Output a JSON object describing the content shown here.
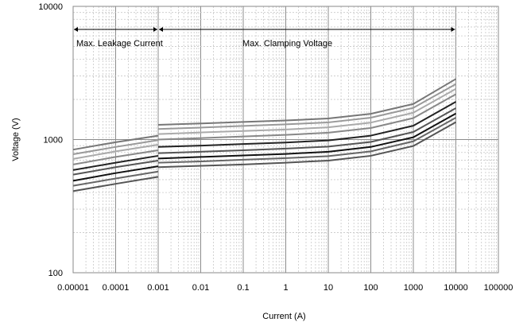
{
  "chart_data": {
    "type": "line",
    "xscale": "log",
    "yscale": "log",
    "xlim": [
      1e-05,
      100000
    ],
    "ylim": [
      100,
      10000
    ],
    "xlabel": "Current (A)",
    "ylabel": "Voltage (V)",
    "x_ticks": [
      "0.00001",
      "0.0001",
      "0.001",
      "0.01",
      "0.1",
      "1",
      "10",
      "100",
      "1000",
      "10000",
      "100000"
    ],
    "y_ticks": [
      "100",
      "1000",
      "10000"
    ],
    "grid": true,
    "annotations": [
      {
        "text": "Max. Leakage Current",
        "x_from": 1e-05,
        "x_to": 0.001
      },
      {
        "text": "Max. Clamping Voltage",
        "x_from": 0.001,
        "x_to": 10000
      }
    ],
    "series": [
      {
        "color": "#777777",
        "leakage": {
          "x": [
            1e-05,
            0.0001,
            0.001
          ],
          "y": [
            840,
            955,
            1070
          ]
        },
        "clamping": {
          "x": [
            0.001,
            0.01,
            0.1,
            1,
            10,
            100,
            1000,
            10000
          ],
          "y": [
            1290,
            1320,
            1355,
            1390,
            1440,
            1560,
            1850,
            2850
          ]
        }
      },
      {
        "color": "#999999",
        "leakage": {
          "x": [
            1e-05,
            0.0001,
            0.001
          ],
          "y": [
            775,
            880,
            990
          ]
        },
        "clamping": {
          "x": [
            0.001,
            0.01,
            0.1,
            1,
            10,
            100,
            1000,
            10000
          ],
          "y": [
            1200,
            1230,
            1265,
            1300,
            1345,
            1460,
            1730,
            2610
          ]
        }
      },
      {
        "color": "#aaaaaa",
        "leakage": {
          "x": [
            1e-05,
            0.0001,
            0.001
          ],
          "y": [
            715,
            815,
            915
          ]
        },
        "clamping": {
          "x": [
            0.001,
            0.01,
            0.1,
            1,
            10,
            100,
            1000,
            10000
          ],
          "y": [
            1100,
            1130,
            1160,
            1190,
            1235,
            1340,
            1590,
            2400
          ]
        }
      },
      {
        "color": "#888888",
        "leakage": {
          "x": [
            1e-05,
            0.0001,
            0.001
          ],
          "y": [
            650,
            740,
            830
          ]
        },
        "clamping": {
          "x": [
            0.001,
            0.01,
            0.1,
            1,
            10,
            100,
            1000,
            10000
          ],
          "y": [
            1000,
            1025,
            1055,
            1085,
            1125,
            1220,
            1450,
            2190
          ]
        }
      },
      {
        "color": "#222222",
        "leakage": {
          "x": [
            1e-05,
            0.0001,
            0.001
          ],
          "y": [
            590,
            670,
            755
          ]
        },
        "clamping": {
          "x": [
            0.001,
            0.01,
            0.1,
            1,
            10,
            100,
            1000,
            10000
          ],
          "y": [
            880,
            900,
            925,
            950,
            985,
            1070,
            1270,
            1920
          ]
        }
      },
      {
        "color": "#555555",
        "leakage": {
          "x": [
            1e-05,
            0.0001,
            0.001
          ],
          "y": [
            545,
            620,
            695
          ]
        },
        "clamping": {
          "x": [
            0.001,
            0.01,
            0.1,
            1,
            10,
            100,
            1000,
            10000
          ],
          "y": [
            790,
            810,
            830,
            855,
            885,
            960,
            1140,
            1720
          ]
        }
      },
      {
        "color": "#111111",
        "leakage": {
          "x": [
            1e-05,
            0.0001,
            0.001
          ],
          "y": [
            490,
            560,
            630
          ]
        },
        "clamping": {
          "x": [
            0.001,
            0.01,
            0.1,
            1,
            10,
            100,
            1000,
            10000
          ],
          "y": [
            720,
            740,
            760,
            780,
            810,
            880,
            1040,
            1570
          ]
        }
      },
      {
        "color": "#666666",
        "leakage": {
          "x": [
            1e-05,
            0.0001,
            0.001
          ],
          "y": [
            450,
            510,
            575
          ]
        },
        "clamping": {
          "x": [
            0.001,
            0.01,
            0.1,
            1,
            10,
            100,
            1000,
            10000
          ],
          "y": [
            670,
            685,
            705,
            725,
            750,
            815,
            970,
            1460
          ]
        }
      },
      {
        "color": "#555555",
        "leakage": {
          "x": [
            1e-05,
            0.0001,
            0.001
          ],
          "y": [
            410,
            465,
            525
          ]
        },
        "clamping": {
          "x": [
            0.001,
            0.01,
            0.1,
            1,
            10,
            100,
            1000,
            10000
          ],
          "y": [
            620,
            635,
            650,
            670,
            695,
            755,
            895,
            1350
          ]
        }
      }
    ]
  }
}
